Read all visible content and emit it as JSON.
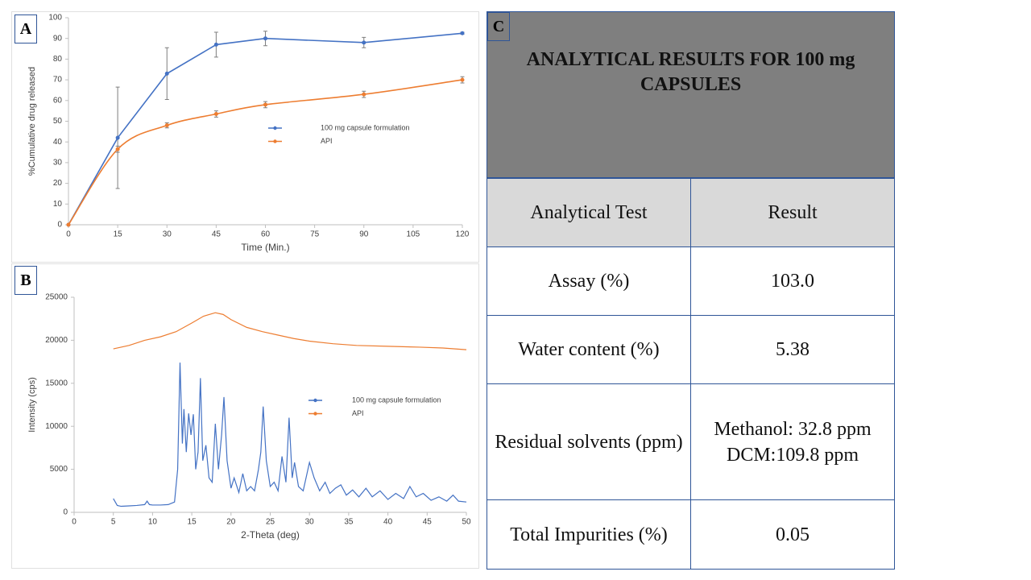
{
  "chart_data": [
    {
      "type": "line",
      "panel": "A",
      "xlabel": "Time (Min.)",
      "ylabel": "%Cumulative drug released",
      "x": [
        0,
        15,
        30,
        45,
        60,
        90,
        120
      ],
      "series": [
        {
          "name": "100 mg capsule formulation",
          "color": "#4472c4",
          "values": [
            0,
            42,
            73,
            87,
            90,
            88,
            92.5
          ],
          "errors": [
            0,
            24.5,
            12.5,
            6,
            3.5,
            2.5,
            0.5
          ]
        },
        {
          "name": "API",
          "color": "#ed7d31",
          "smooth": true,
          "values": [
            0,
            36.5,
            48,
            53.5,
            58,
            63,
            70
          ],
          "errors": [
            0,
            1.5,
            1.2,
            1.5,
            1.5,
            1.5,
            1.5
          ]
        }
      ],
      "markers": true,
      "xlim": [
        0,
        120
      ],
      "xticks": [
        0,
        15,
        30,
        45,
        60,
        75,
        90,
        105,
        120
      ],
      "ylim": [
        0,
        100
      ],
      "yticks": [
        0,
        10,
        20,
        30,
        40,
        50,
        60,
        70,
        80,
        90,
        100
      ]
    },
    {
      "type": "line",
      "panel": "B",
      "xlabel": "2-Theta (deg)",
      "ylabel": "Intensity (cps)",
      "series": [
        {
          "name": "100 mg capsule formulation",
          "color": "#4472c4",
          "x": [
            5,
            5.5,
            6,
            7,
            8,
            9,
            9.3,
            9.6,
            10,
            11,
            12,
            12.8,
            13.2,
            13.5,
            13.8,
            14,
            14.3,
            14.6,
            14.9,
            15.2,
            15.5,
            15.8,
            16.1,
            16.4,
            16.8,
            17.2,
            17.6,
            18,
            18.4,
            18.8,
            19.1,
            19.5,
            20,
            20.4,
            21,
            21.5,
            22,
            22.5,
            23,
            23.5,
            23.8,
            24.1,
            24.5,
            25,
            25.5,
            26,
            26.5,
            27,
            27.4,
            27.8,
            28.1,
            28.6,
            29.2,
            30,
            30.6,
            31.3,
            32,
            32.6,
            33.3,
            34,
            34.7,
            35.5,
            36.3,
            37.2,
            38,
            39,
            40,
            41,
            42,
            42.8,
            43.6,
            44.5,
            45.5,
            46.5,
            47.5,
            48.3,
            49,
            50
          ],
          "values": [
            1600,
            800,
            700,
            750,
            800,
            900,
            1300,
            900,
            850,
            850,
            900,
            1200,
            5000,
            17400,
            8000,
            12000,
            7000,
            11500,
            9000,
            11400,
            5000,
            7000,
            15600,
            6000,
            7800,
            4000,
            3500,
            10300,
            5000,
            9000,
            13400,
            6000,
            2800,
            4000,
            2300,
            4500,
            2500,
            3000,
            2500,
            5000,
            7000,
            12300,
            6000,
            3000,
            3500,
            2500,
            6500,
            3500,
            11000,
            4000,
            5800,
            3000,
            2500,
            5800,
            4000,
            2500,
            3500,
            2200,
            2800,
            3200,
            2000,
            2600,
            1800,
            2800,
            1800,
            2500,
            1500,
            2200,
            1600,
            3000,
            1800,
            2200,
            1400,
            1800,
            1300,
            2000,
            1300,
            1200
          ]
        },
        {
          "name": "API",
          "color": "#ed7d31",
          "x": [
            5,
            7,
            9,
            11,
            13,
            15,
            16.5,
            18,
            19,
            20,
            22,
            24,
            26,
            28,
            30,
            33,
            36,
            40,
            44,
            47,
            50
          ],
          "values": [
            19000,
            19400,
            20000,
            20400,
            21000,
            22000,
            22800,
            23200,
            23000,
            22400,
            21500,
            21000,
            20600,
            20200,
            19900,
            19600,
            19400,
            19300,
            19200,
            19100,
            18900
          ]
        }
      ],
      "xlim": [
        0,
        50
      ],
      "xticks": [
        0,
        5,
        10,
        15,
        20,
        25,
        30,
        35,
        40,
        45,
        50
      ],
      "ylim": [
        0,
        25000
      ],
      "yticks": [
        0,
        5000,
        10000,
        15000,
        20000,
        25000
      ]
    }
  ],
  "table": {
    "panel": "C",
    "title": "ANALYTICAL RESULTS FOR 100 mg CAPSULES",
    "header": [
      "Analytical Test",
      "Result"
    ],
    "rows": [
      [
        "Assay (%)",
        "103.0"
      ],
      [
        "Water content (%)",
        "5.38"
      ],
      [
        "Residual solvents (ppm)",
        [
          "Methanol: 32.8 ppm",
          "DCM:109.8 ppm"
        ]
      ],
      [
        "Total Impurities (%)",
        "0.05"
      ]
    ]
  }
}
